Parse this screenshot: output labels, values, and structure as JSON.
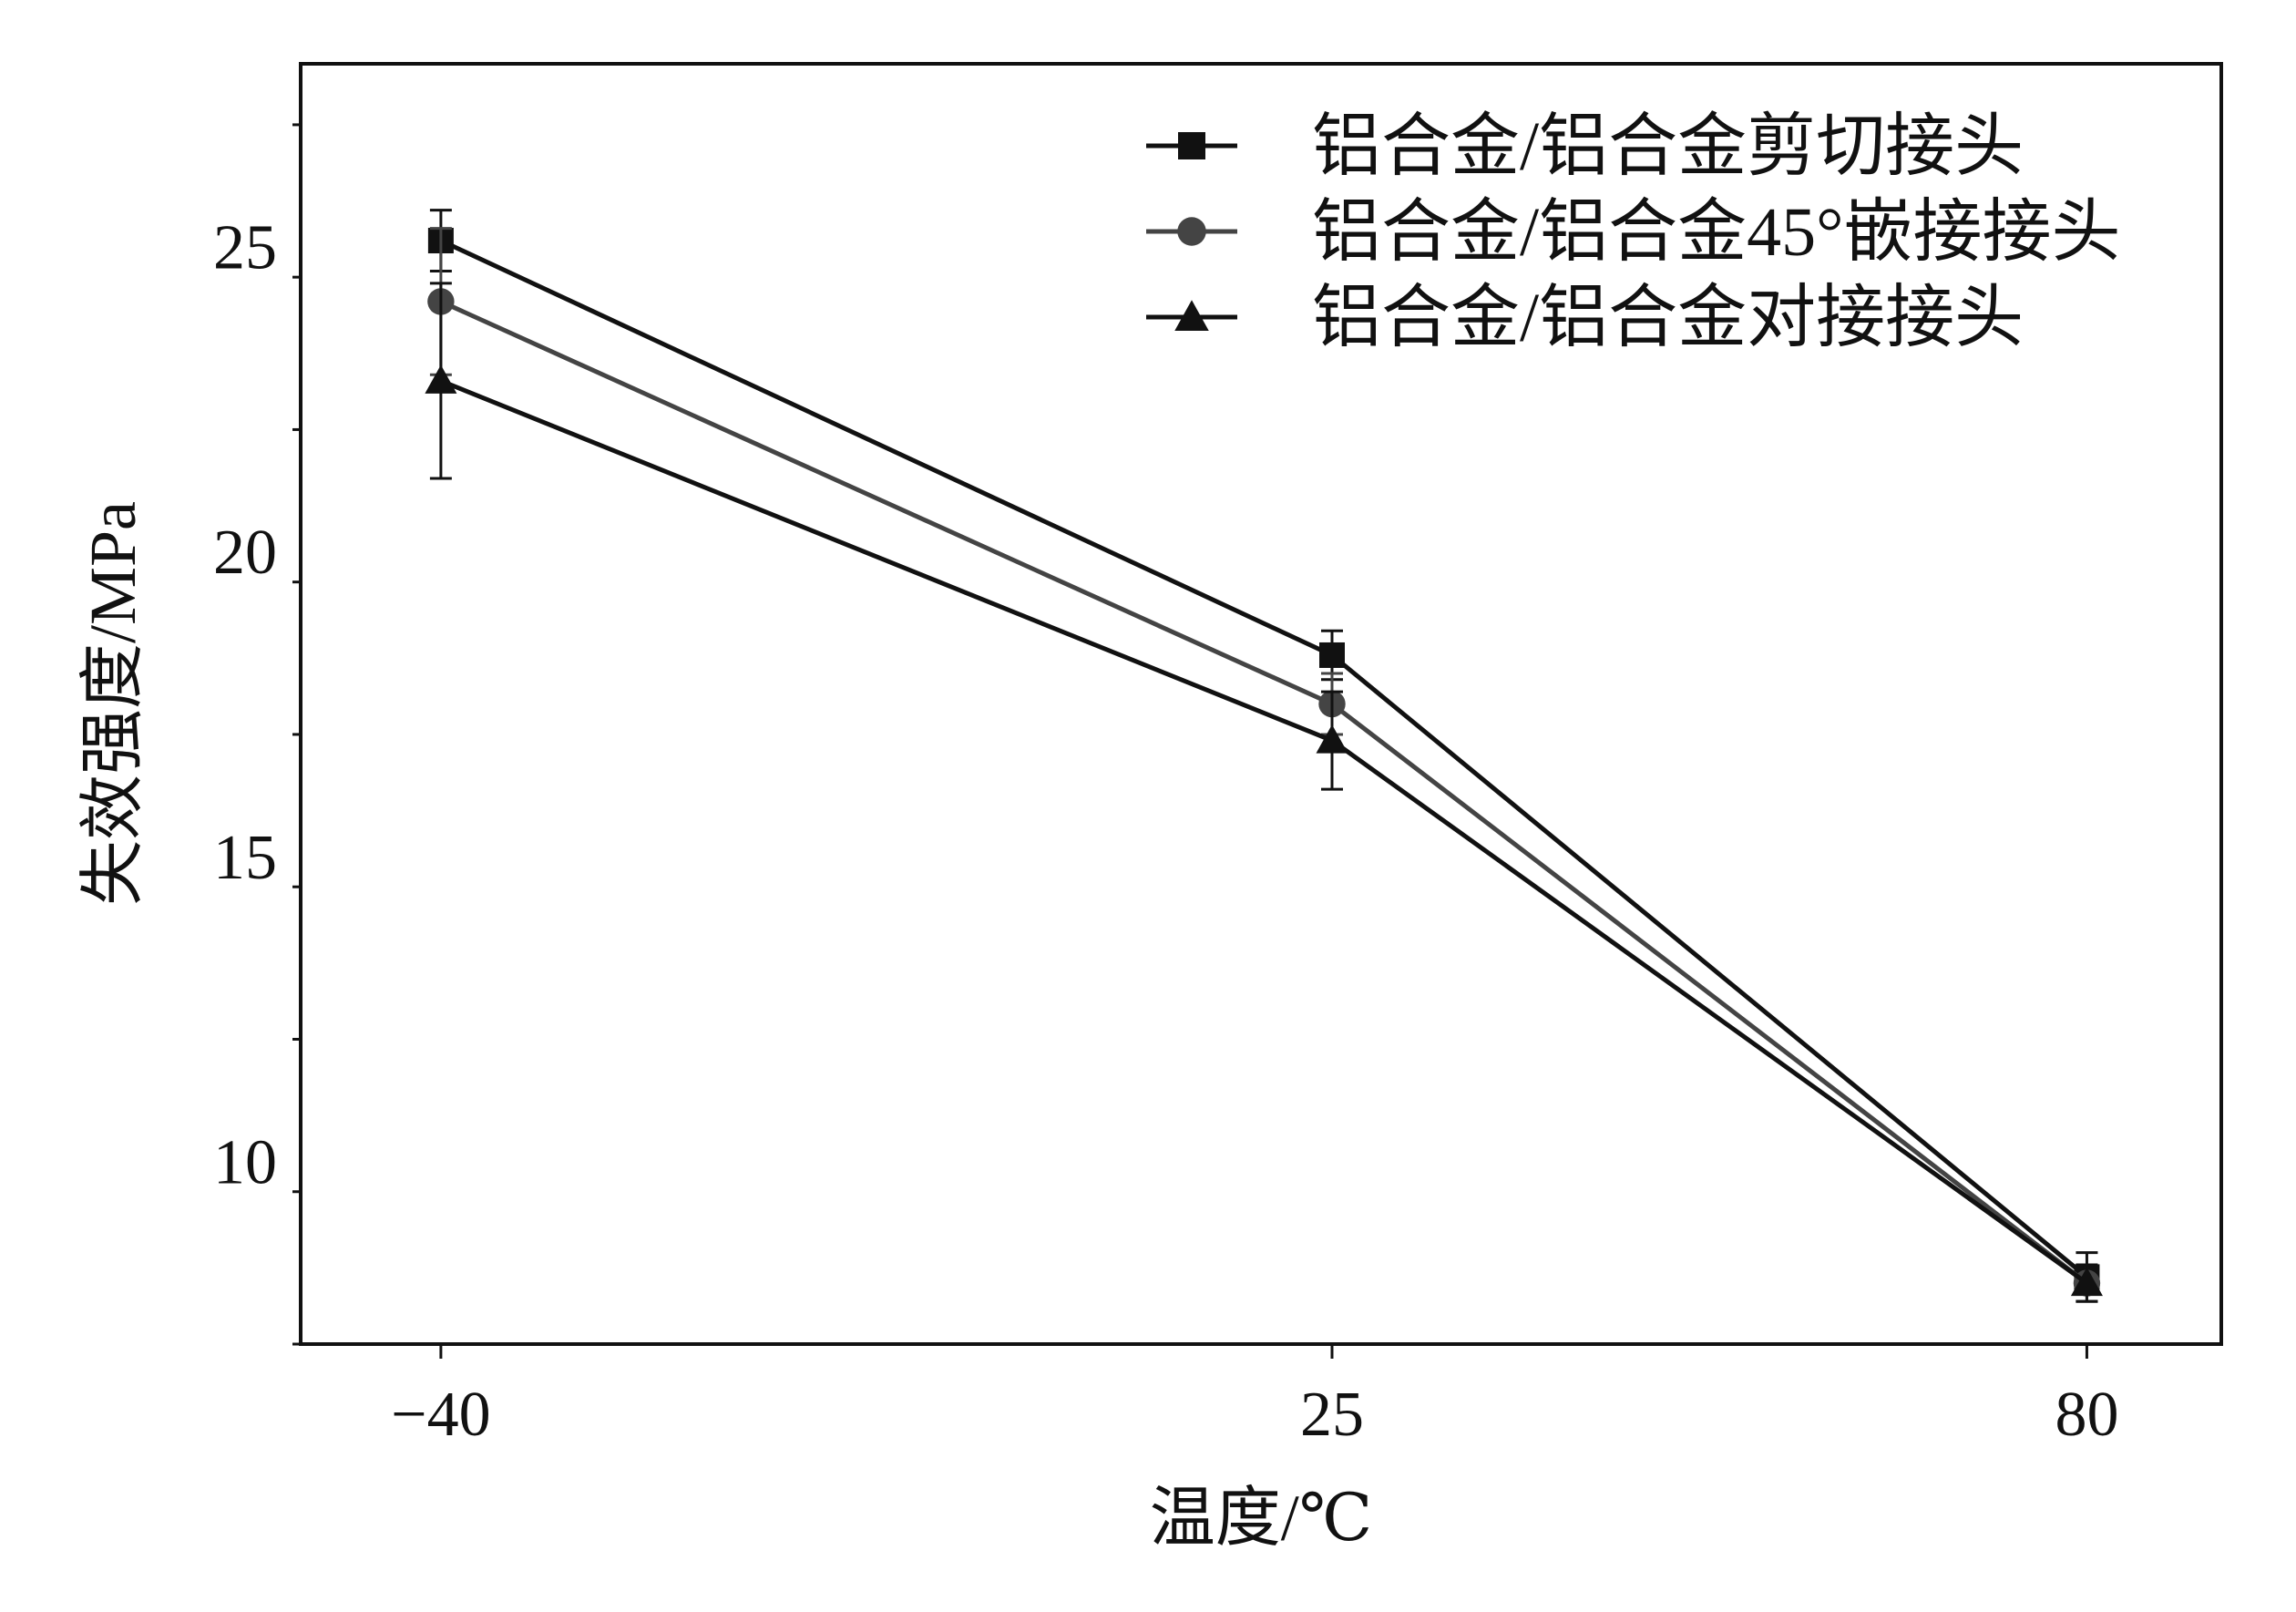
{
  "chart_data": {
    "type": "line",
    "title": "",
    "xlabel": "温度/℃",
    "ylabel": "失效强度/MPa",
    "categories": [
      "−40",
      "25",
      "80"
    ],
    "x": [
      -40,
      25,
      80
    ],
    "ylim": [
      7,
      28
    ],
    "yticks": [
      10,
      15,
      20,
      25
    ],
    "ytick_labels": [
      "10",
      "15",
      "20",
      "25"
    ],
    "grid": false,
    "legend_position": "top-right",
    "series": [
      {
        "name": "铝合金/铝合金剪切接头",
        "marker": "square",
        "color": "#111111",
        "values": [
          25.1,
          18.3,
          8.1
        ],
        "errors": [
          0.5,
          0.4,
          0.4
        ]
      },
      {
        "name": "铝合金/铝合金45°嵌接接头",
        "marker": "circle",
        "color": "#444444",
        "values": [
          24.1,
          17.5,
          8.0
        ],
        "errors": [
          1.2,
          0.5,
          0.3
        ]
      },
      {
        "name": "铝合金/铝合金对接接头",
        "marker": "triangle",
        "color": "#111111",
        "values": [
          22.8,
          16.9,
          8.0
        ],
        "errors": [
          1.6,
          0.8,
          0.3
        ]
      }
    ]
  }
}
